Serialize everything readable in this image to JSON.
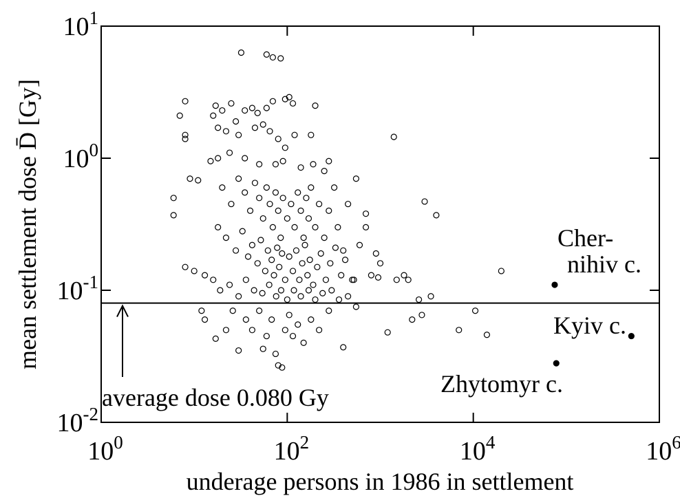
{
  "chart_data": {
    "type": "scatter",
    "xlabel": "underage persons in 1986 in settlement",
    "ylabel": "mean settlement dose D̄ [Gy]",
    "xlog": true,
    "ylog": true,
    "xlim": [
      1,
      1000000
    ],
    "ylim": [
      0.01,
      10
    ],
    "xticks": [
      {
        "value": 1,
        "label": "10",
        "exponent": "0"
      },
      {
        "value": 100,
        "label": "10",
        "exponent": "2"
      },
      {
        "value": 10000,
        "label": "10",
        "exponent": "4"
      },
      {
        "value": 1000000,
        "label": "10",
        "exponent": "6"
      }
    ],
    "yticks": [
      {
        "value": 0.01,
        "label": "10",
        "exponent": "-2"
      },
      {
        "value": 0.1,
        "label": "10",
        "exponent": "-1"
      },
      {
        "value": 1,
        "label": "10",
        "exponent": "0"
      },
      {
        "value": 10,
        "label": "10",
        "exponent": "1"
      }
    ],
    "hline": 0.08,
    "hline_label": "average dose 0.080 Gy",
    "annotations": [
      "Cher-",
      "nihiv c.",
      "Kyiv c.",
      "Zhytomyr c."
    ],
    "series": [
      {
        "color": "#000000",
        "filled": false,
        "x": [
          32,
          60,
          70,
          85,
          8,
          7,
          8,
          8,
          6,
          6,
          9,
          11,
          8,
          10,
          13,
          17,
          20,
          16,
          25,
          28,
          35,
          42,
          48,
          60,
          70,
          95,
          105,
          115,
          200,
          18,
          22,
          30,
          45,
          55,
          65,
          80,
          95,
          120,
          180,
          1400,
          15,
          18,
          24,
          35,
          50,
          75,
          90,
          140,
          190,
          250,
          280,
          20,
          25,
          30,
          35,
          40,
          45,
          50,
          55,
          60,
          65,
          70,
          75,
          80,
          85,
          90,
          100,
          110,
          120,
          130,
          140,
          150,
          160,
          170,
          180,
          200,
          220,
          250,
          280,
          320,
          350,
          400,
          450,
          550,
          700,
          18,
          22,
          28,
          33,
          38,
          42,
          48,
          52,
          58,
          62,
          68,
          72,
          78,
          82,
          88,
          95,
          105,
          115,
          125,
          135,
          145,
          155,
          165,
          175,
          190,
          210,
          230,
          260,
          290,
          330,
          380,
          420,
          500,
          600,
          16,
          19,
          24,
          30,
          36,
          44,
          54,
          64,
          76,
          86,
          100,
          118,
          140,
          170,
          200,
          240,
          300,
          360,
          450,
          520,
          12,
          13,
          17,
          22,
          26,
          30,
          36,
          42,
          50,
          55,
          60,
          68,
          75,
          80,
          88,
          95,
          105,
          115,
          130,
          150,
          180,
          220,
          280,
          400,
          800,
          900,
          950,
          1000,
          1500,
          1800,
          2000,
          3000,
          4000,
          2600,
          3500,
          1200,
          2200,
          2800,
          7000,
          10500,
          14000,
          20000,
          700,
          550
        ],
        "values": [
          6.3,
          6.1,
          5.8,
          5.7,
          2.7,
          2.1,
          1.5,
          1.4,
          0.5,
          0.37,
          0.7,
          0.68,
          0.15,
          0.14,
          0.13,
          2.5,
          2.3,
          2.1,
          2.6,
          1.9,
          2.3,
          2.4,
          2.2,
          2.4,
          2.7,
          2.8,
          2.9,
          2.6,
          2.5,
          1.7,
          1.6,
          1.5,
          1.7,
          1.8,
          1.6,
          1.4,
          1.2,
          1.5,
          1.5,
          1.45,
          0.95,
          1.0,
          1.1,
          1.0,
          0.9,
          0.9,
          0.95,
          0.85,
          0.9,
          0.8,
          0.95,
          0.6,
          0.45,
          0.7,
          0.55,
          0.4,
          0.65,
          0.5,
          0.35,
          0.6,
          0.45,
          0.3,
          0.55,
          0.4,
          0.25,
          0.5,
          0.35,
          0.45,
          0.3,
          0.55,
          0.4,
          0.25,
          0.5,
          0.35,
          0.6,
          0.3,
          0.45,
          0.25,
          0.4,
          0.6,
          0.3,
          0.2,
          0.45,
          0.7,
          0.3,
          0.3,
          0.25,
          0.2,
          0.28,
          0.18,
          0.22,
          0.16,
          0.24,
          0.14,
          0.2,
          0.17,
          0.13,
          0.21,
          0.15,
          0.19,
          0.12,
          0.18,
          0.14,
          0.2,
          0.12,
          0.16,
          0.22,
          0.13,
          0.17,
          0.11,
          0.15,
          0.19,
          0.12,
          0.16,
          0.21,
          0.13,
          0.17,
          0.12,
          0.22,
          0.12,
          0.1,
          0.11,
          0.09,
          0.12,
          0.1,
          0.095,
          0.11,
          0.09,
          0.1,
          0.085,
          0.1,
          0.09,
          0.1,
          0.085,
          0.095,
          0.1,
          0.085,
          0.09,
          0.12,
          0.07,
          0.06,
          0.043,
          0.05,
          0.07,
          0.035,
          0.06,
          0.05,
          0.07,
          0.036,
          0.045,
          0.06,
          0.033,
          0.027,
          0.026,
          0.05,
          0.065,
          0.045,
          0.055,
          0.04,
          0.06,
          0.05,
          0.07,
          0.037,
          0.13,
          0.19,
          0.125,
          0.16,
          0.12,
          0.13,
          0.12,
          0.47,
          0.37,
          0.085,
          0.09,
          0.048,
          0.06,
          0.065,
          0.05,
          0.07,
          0.046,
          0.14,
          0.38,
          0.075
        ]
      },
      {
        "color": "#000000",
        "filled": true,
        "x": [
          75000,
          500000,
          78000
        ],
        "values": [
          0.11,
          0.045,
          0.028
        ]
      }
    ]
  }
}
